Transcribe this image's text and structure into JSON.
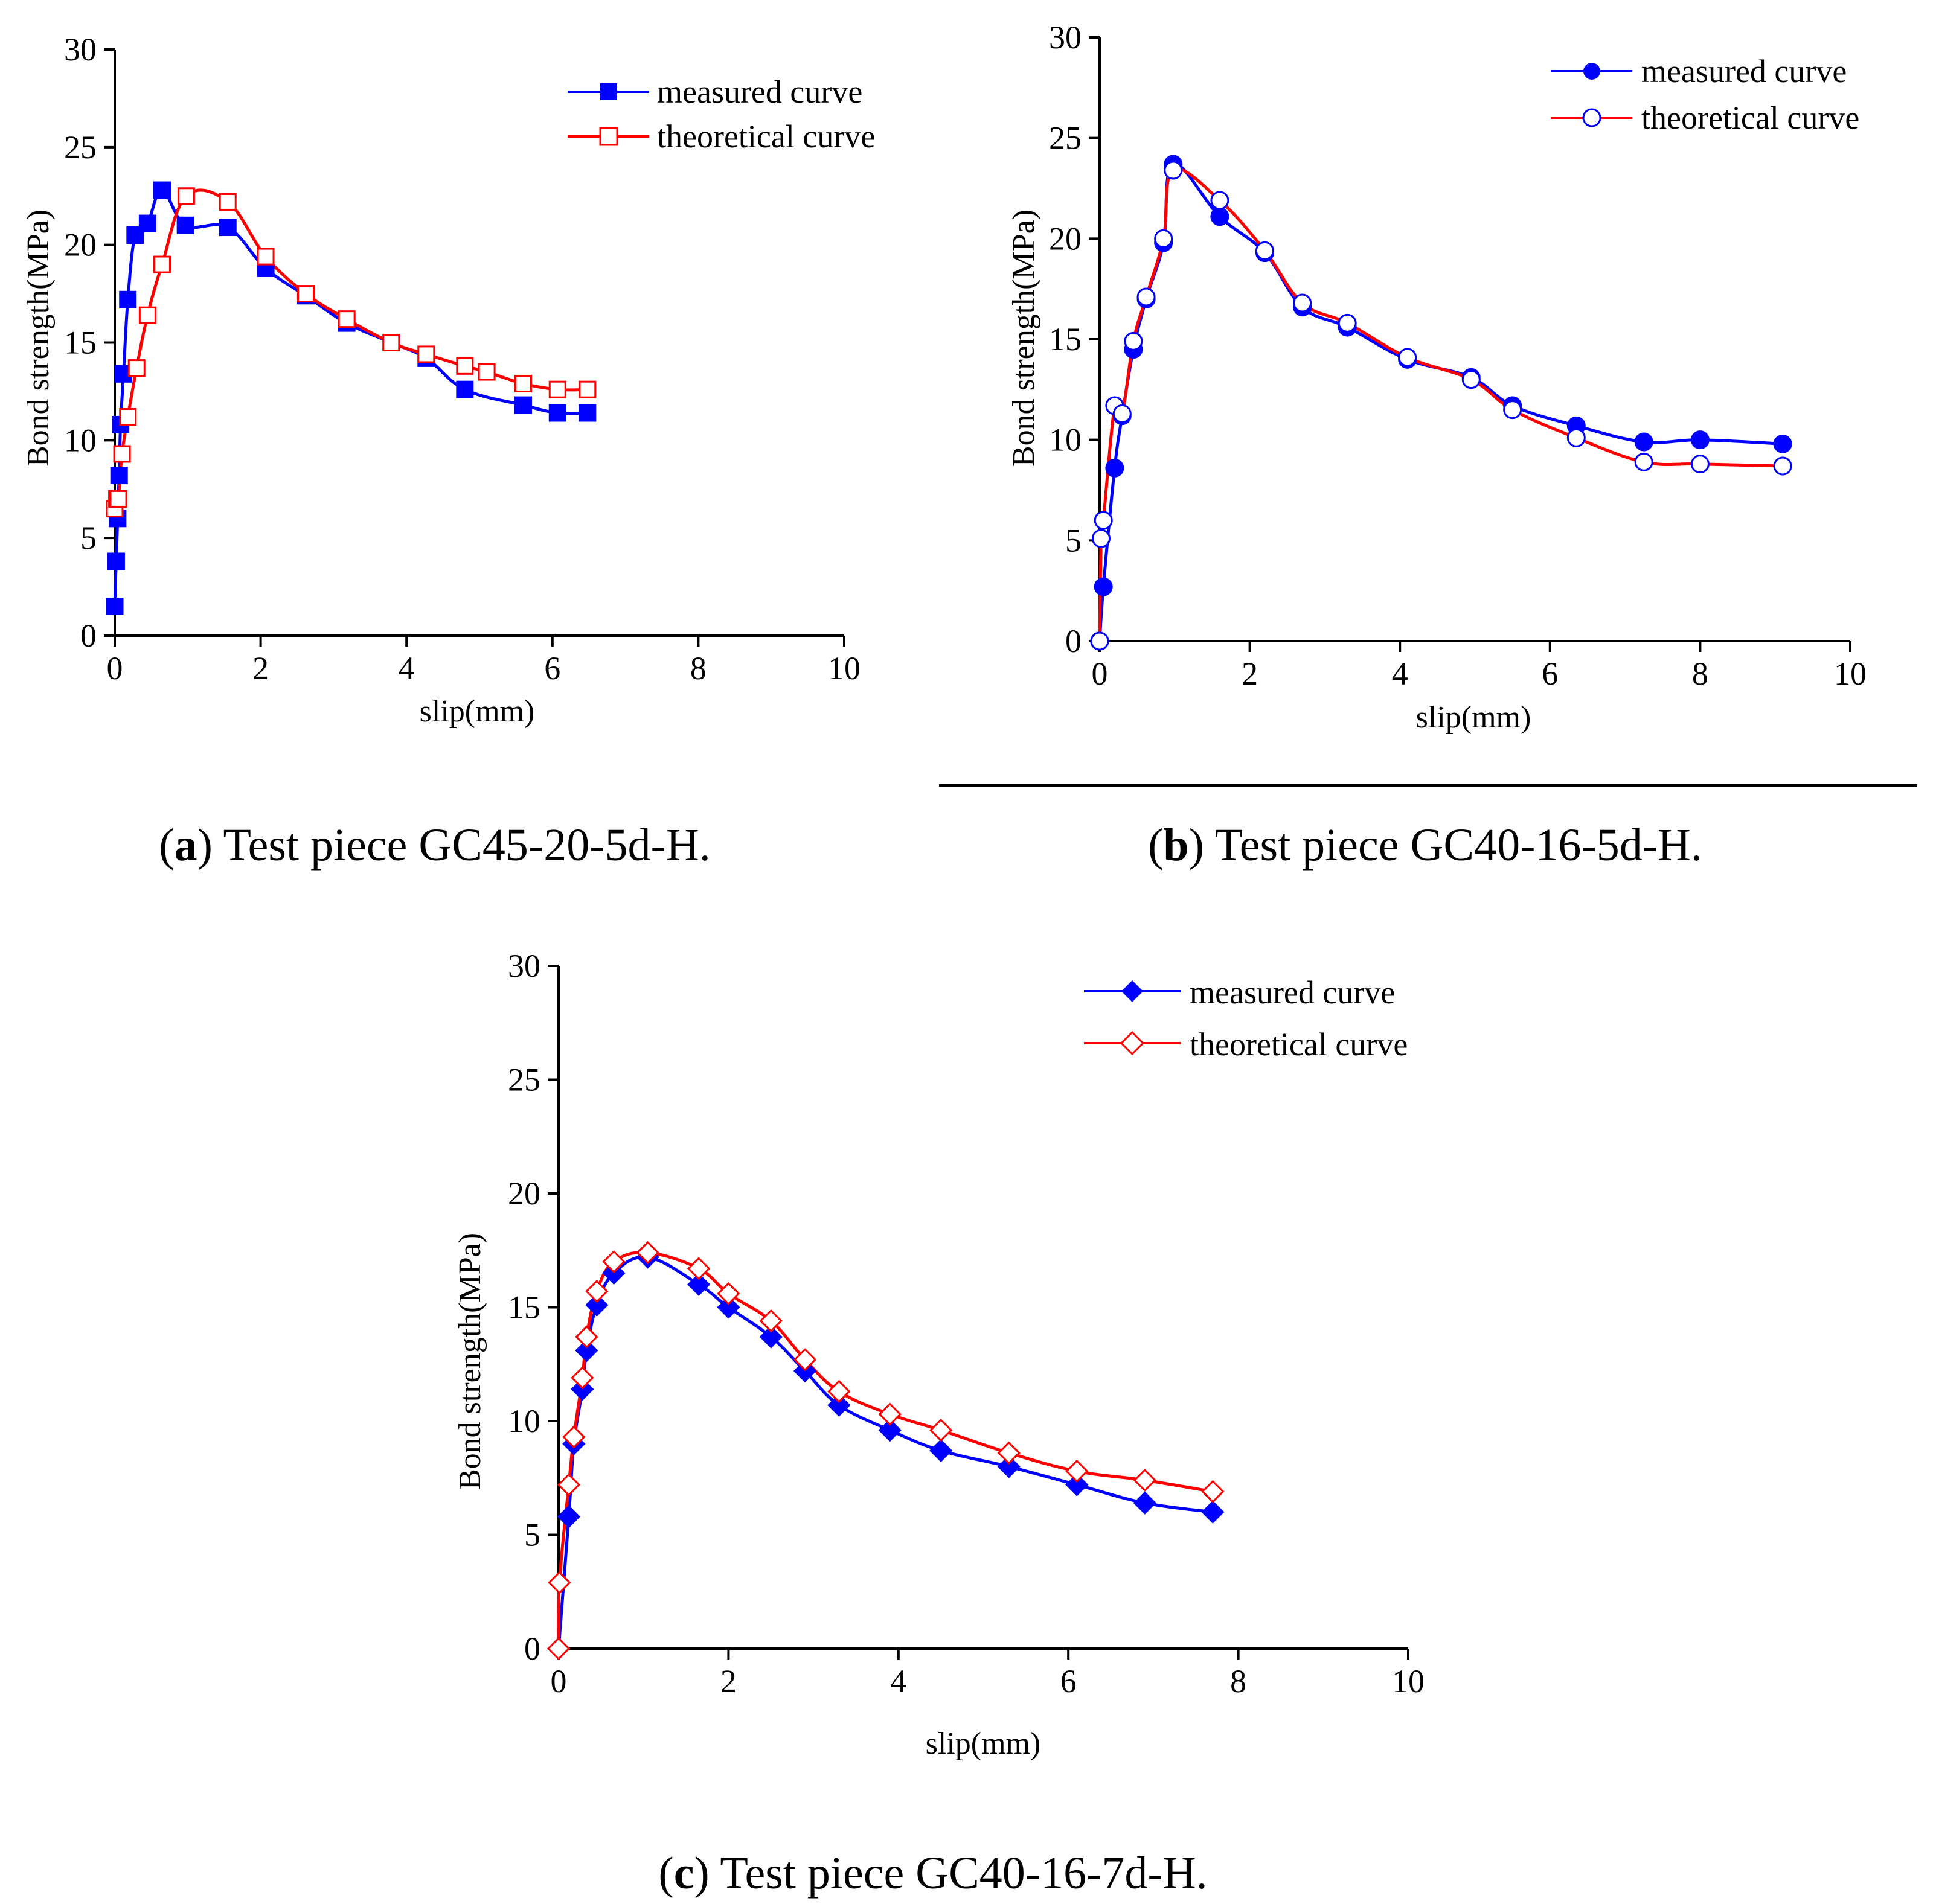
{
  "chart_data": [
    {
      "type": "line",
      "panel_label": "a",
      "caption_text": " Test piece GC45-20-5d-H.",
      "xlabel": "slip(mm)",
      "ylabel": "Bond strength(MPa)",
      "xlim": [
        0,
        10
      ],
      "ylim": [
        0,
        30
      ],
      "xticks": [
        "0",
        "2",
        "4",
        "6",
        "8",
        "10"
      ],
      "yticks": [
        "0",
        "5",
        "10",
        "15",
        "20",
        "25",
        "30"
      ],
      "legend": [
        "measured curve",
        "theoretical curve"
      ],
      "series": [
        {
          "name": "measured curve",
          "color": "#0000ff",
          "marker": "square-filled",
          "x": [
            0,
            0.02,
            0.04,
            0.06,
            0.08,
            0.12,
            0.18,
            0.28,
            0.45,
            0.65,
            0.97,
            1.55,
            2.07,
            2.62,
            3.18,
            3.79,
            4.27,
            4.8,
            5.6,
            6.07,
            6.48
          ],
          "y": [
            1.5,
            3.8,
            6.0,
            8.2,
            10.8,
            13.4,
            17.2,
            20.5,
            21.1,
            22.8,
            21.0,
            20.9,
            18.8,
            17.4,
            16.0,
            15.0,
            14.2,
            12.6,
            11.8,
            11.4,
            11.4
          ]
        },
        {
          "name": "theoretical curve",
          "color": "#ff0000",
          "marker": "square-open",
          "x": [
            0,
            0.03,
            0.05,
            0.1,
            0.18,
            0.3,
            0.45,
            0.65,
            0.98,
            1.55,
            2.07,
            2.62,
            3.18,
            3.79,
            4.27,
            4.8,
            5.1,
            5.6,
            6.07,
            6.48
          ],
          "y": [
            6.5,
            7.0,
            7.0,
            9.3,
            11.2,
            13.7,
            16.4,
            19.0,
            22.5,
            22.2,
            19.4,
            17.5,
            16.2,
            15.0,
            14.4,
            13.8,
            13.5,
            12.9,
            12.6,
            12.6
          ]
        }
      ]
    },
    {
      "type": "line",
      "panel_label": "b",
      "caption_text": " Test piece GC40-16-5d-H.",
      "xlabel": "slip(mm)",
      "ylabel": "Bond strength(MPa)",
      "xlim": [
        0,
        10
      ],
      "ylim": [
        0,
        30
      ],
      "xticks": [
        "0",
        "2",
        "4",
        "6",
        "8",
        "10"
      ],
      "yticks": [
        "0",
        "5",
        "10",
        "15",
        "20",
        "25",
        "30"
      ],
      "legend": [
        "measured curve",
        "theoretical curve"
      ],
      "series": [
        {
          "name": "measured curve",
          "color": "#0000ff",
          "marker": "circle-filled",
          "x": [
            0,
            0.05,
            0.2,
            0.3,
            0.45,
            0.62,
            0.85,
            0.98,
            1.6,
            2.2,
            2.7,
            3.3,
            4.1,
            4.95,
            5.5,
            6.35,
            7.25,
            8.0,
            9.1
          ],
          "y": [
            0,
            2.7,
            8.6,
            11.2,
            14.5,
            17.0,
            19.8,
            23.7,
            21.1,
            19.3,
            16.6,
            15.6,
            14.0,
            13.1,
            11.7,
            10.7,
            9.9,
            10.0,
            9.8
          ]
        },
        {
          "name": "theoretical curve",
          "color": "#ff0000",
          "marker": "circle-open",
          "x": [
            0,
            0.02,
            0.05,
            0.2,
            0.3,
            0.45,
            0.62,
            0.85,
            0.98,
            1.6,
            2.2,
            2.7,
            3.3,
            4.1,
            4.95,
            5.5,
            6.35,
            7.25,
            8.0,
            9.1
          ],
          "y": [
            0,
            5.1,
            6.0,
            11.7,
            11.3,
            14.9,
            17.1,
            20.0,
            23.4,
            21.9,
            19.4,
            16.8,
            15.8,
            14.1,
            13.0,
            11.5,
            10.1,
            8.9,
            8.8,
            8.7
          ]
        }
      ]
    },
    {
      "type": "line",
      "panel_label": "c",
      "caption_text": " Test piece GC40-16-7d-H.",
      "xlabel": "slip(mm)",
      "ylabel": "Bond strength(MPa)",
      "xlim": [
        0,
        10
      ],
      "ylim": [
        0,
        30
      ],
      "xticks": [
        "0",
        "2",
        "4",
        "6",
        "8",
        "10"
      ],
      "yticks": [
        "0",
        "5",
        "10",
        "15",
        "20",
        "25",
        "30"
      ],
      "legend": [
        "measured curve",
        "theoretical curve"
      ],
      "series": [
        {
          "name": "measured curve",
          "color": "#0000ff",
          "marker": "diamond-filled",
          "x": [
            0,
            0.12,
            0.18,
            0.28,
            0.33,
            0.45,
            0.65,
            1.05,
            1.65,
            2.0,
            2.5,
            2.9,
            3.3,
            3.9,
            4.5,
            5.3,
            6.1,
            6.9,
            7.7
          ],
          "y": [
            0,
            5.8,
            9.0,
            11.4,
            13.1,
            15.1,
            16.5,
            17.2,
            16.0,
            15.0,
            13.7,
            12.2,
            10.7,
            9.6,
            8.7,
            8.0,
            7.2,
            6.4,
            6.0
          ]
        },
        {
          "name": "theoretical curve",
          "color": "#ff0000",
          "marker": "diamond-open",
          "x": [
            0,
            0.01,
            0.12,
            0.18,
            0.28,
            0.33,
            0.45,
            0.65,
            1.05,
            1.65,
            2.0,
            2.5,
            2.9,
            3.3,
            3.9,
            4.5,
            5.3,
            6.1,
            6.9,
            7.7
          ],
          "y": [
            0,
            2.9,
            7.2,
            9.3,
            11.9,
            13.7,
            15.7,
            17.0,
            17.4,
            16.7,
            15.6,
            14.4,
            12.7,
            11.3,
            10.3,
            9.6,
            8.6,
            7.8,
            7.4,
            6.9
          ]
        }
      ]
    }
  ]
}
